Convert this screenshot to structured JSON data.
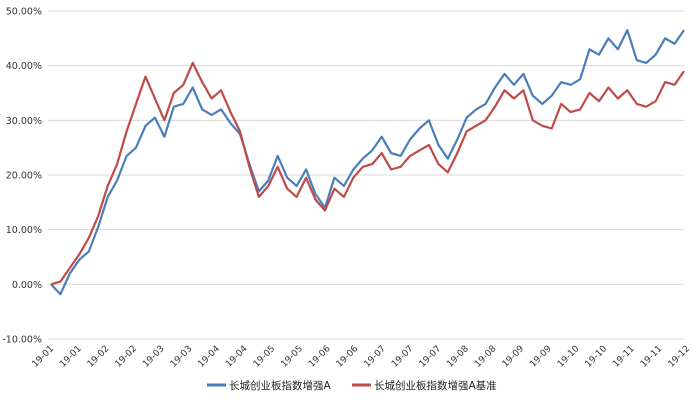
{
  "chart_data": {
    "type": "line",
    "title": "",
    "xlabel": "",
    "ylabel": "",
    "ylim": [
      -10,
      50
    ],
    "ytick_labels": [
      "50.00%",
      "40.00%",
      "30.00%",
      "20.00%",
      "10.00%",
      "0.00%",
      "-10.00%"
    ],
    "ytick_values": [
      50,
      40,
      30,
      20,
      10,
      0,
      -10
    ],
    "xtick_labels": [
      "19-01",
      "19-01",
      "19-02",
      "19-02",
      "19-03",
      "19-03",
      "19-04",
      "19-04",
      "19-05",
      "19-05",
      "19-06",
      "19-06",
      "19-07",
      "19-07",
      "19-07",
      "19-08",
      "19-08",
      "19-09",
      "19-09",
      "19-10",
      "19-10",
      "19-11",
      "19-11",
      "19-12"
    ],
    "grid": "horizontal",
    "legend_position": "bottom",
    "series": [
      {
        "name": "长城创业板指数增强A",
        "color": "#4a7ebb",
        "values": [
          0.0,
          -1.8,
          2.0,
          4.5,
          6.0,
          10.5,
          16.0,
          19.0,
          23.5,
          25.0,
          29.0,
          30.5,
          27.0,
          32.5,
          33.0,
          36.0,
          32.0,
          31.0,
          32.0,
          29.5,
          27.5,
          22.0,
          17.0,
          19.0,
          23.5,
          19.5,
          18.0,
          21.0,
          16.5,
          14.0,
          19.5,
          18.0,
          21.0,
          23.0,
          24.5,
          27.0,
          24.0,
          23.5,
          26.5,
          28.5,
          30.0,
          25.5,
          23.0,
          26.5,
          30.5,
          32.0,
          33.0,
          36.0,
          38.5,
          36.5,
          38.5,
          34.5,
          33.0,
          34.5,
          37.0,
          36.5,
          37.5,
          43.0,
          42.0,
          45.0,
          43.0,
          46.5,
          41.0,
          40.5,
          42.0,
          45.0,
          44.0,
          46.5
        ]
      },
      {
        "name": "长城创业板指数增强A基准",
        "color": "#be4b48",
        "values": [
          0.0,
          0.5,
          3.0,
          5.5,
          8.5,
          12.5,
          18.0,
          22.0,
          28.0,
          33.0,
          38.0,
          34.0,
          30.0,
          35.0,
          36.5,
          40.5,
          37.0,
          34.0,
          35.5,
          31.5,
          28.0,
          21.5,
          16.0,
          18.0,
          21.5,
          17.5,
          16.0,
          19.5,
          15.5,
          13.5,
          17.5,
          16.0,
          19.5,
          21.5,
          22.0,
          24.0,
          21.0,
          21.5,
          23.5,
          24.5,
          25.5,
          22.0,
          20.5,
          24.0,
          28.0,
          29.0,
          30.0,
          32.5,
          35.5,
          34.0,
          35.5,
          30.0,
          29.0,
          28.5,
          33.0,
          31.5,
          32.0,
          35.0,
          33.5,
          36.0,
          34.0,
          35.5,
          33.0,
          32.5,
          33.5,
          37.0,
          36.5,
          39.0
        ]
      }
    ]
  }
}
